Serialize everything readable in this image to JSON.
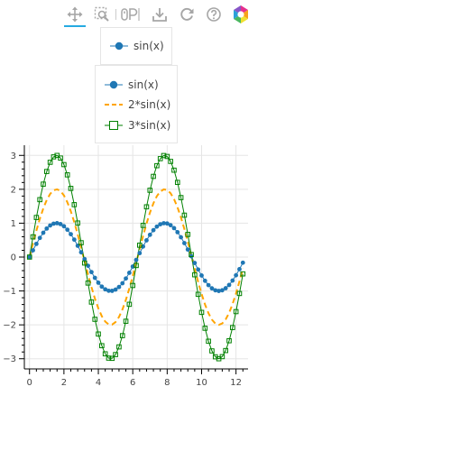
{
  "toolbar": {
    "tools": [
      {
        "name": "pan-tool",
        "icon": "move-arrows-icon",
        "active": true
      },
      {
        "name": "box-zoom-tool",
        "icon": "box-zoom-icon",
        "active": false
      },
      {
        "name": "wheel-zoom-tool",
        "icon": "wheel-zoom-icon",
        "active": false
      },
      {
        "name": "save-tool",
        "icon": "download-icon",
        "active": false
      },
      {
        "name": "reset-tool",
        "icon": "reset-icon",
        "active": false
      },
      {
        "name": "help-tool",
        "icon": "help-icon",
        "active": false
      },
      {
        "name": "bokeh-logo",
        "icon": "bokeh-logo-icon",
        "active": false
      }
    ],
    "accent_color": "#26aae1"
  },
  "legend_1": {
    "items": [
      {
        "label": "sin(x)",
        "glyph": "circle-line",
        "color": "#1f77b4"
      }
    ]
  },
  "legend_2": {
    "items": [
      {
        "label": "sin(x)",
        "glyph": "circle-line",
        "color": "#1f77b4"
      },
      {
        "label": "2*sin(x)",
        "glyph": "dashed-line",
        "color": "#ffa500"
      },
      {
        "label": "3*sin(x)",
        "glyph": "square-line",
        "color": "#008000"
      }
    ]
  },
  "chart_data": {
    "type": "line",
    "x_start": 0,
    "x_step": 0.2,
    "x_count": 63,
    "series": [
      {
        "name": "sin(x)",
        "amplitude": 1,
        "color": "#1f77b4",
        "line": "solid",
        "marker": "circle"
      },
      {
        "name": "2*sin(x)",
        "amplitude": 2,
        "color": "#ffa500",
        "line": "dashed",
        "marker": "none"
      },
      {
        "name": "3*sin(x)",
        "amplitude": 3,
        "color": "#008000",
        "line": "solid",
        "marker": "square"
      }
    ],
    "xlim": [
      -0.3,
      12.7
    ],
    "ylim": [
      -3.3,
      3.3
    ],
    "x_ticks": [
      0,
      2,
      4,
      6,
      8,
      10,
      12
    ],
    "y_ticks": [
      3,
      2,
      1,
      0,
      -1,
      -2,
      -3
    ],
    "x_tick_labels": [
      "0",
      "2",
      "4",
      "6",
      "8",
      "10",
      "12"
    ],
    "y_tick_labels": [
      "3",
      "2",
      "1",
      "0",
      "−1",
      "−2",
      "−3"
    ],
    "grid": true,
    "title": "",
    "xlabel": "",
    "ylabel": ""
  }
}
